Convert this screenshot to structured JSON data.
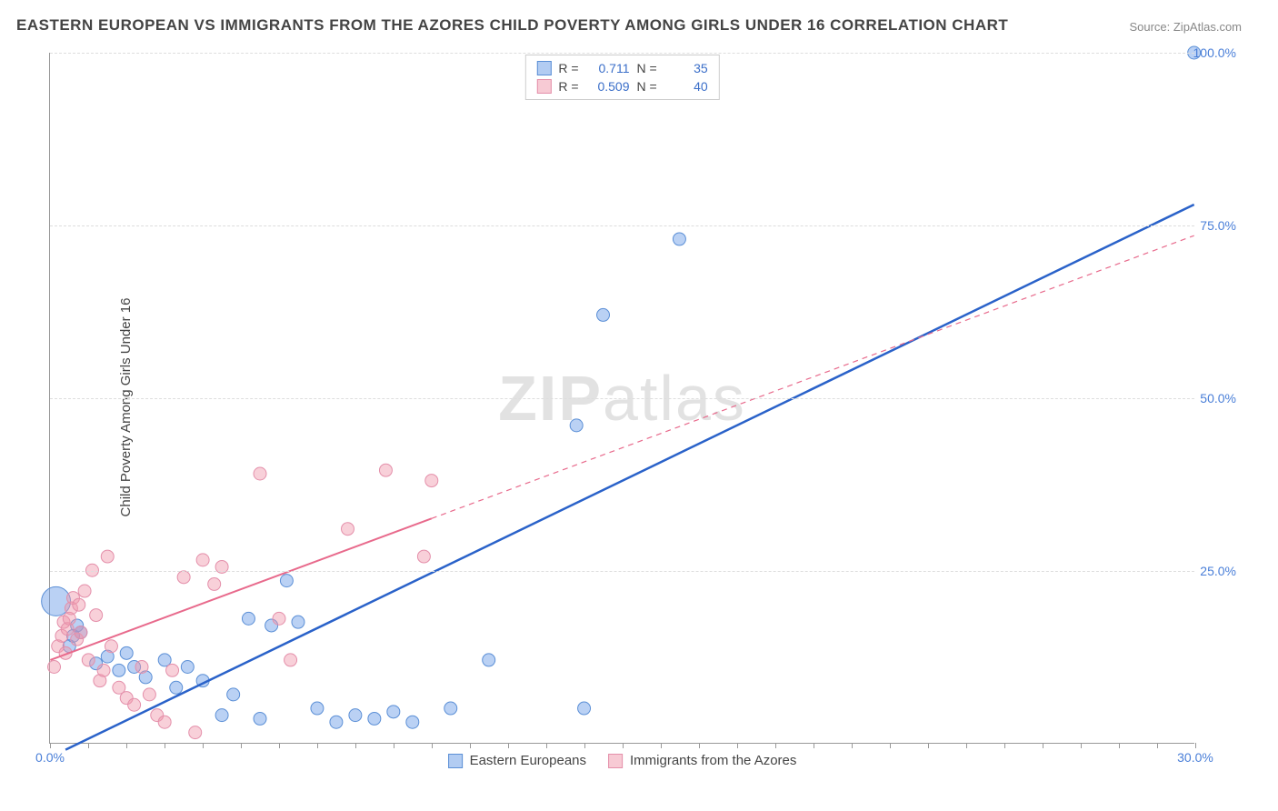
{
  "title": "EASTERN EUROPEAN VS IMMIGRANTS FROM THE AZORES CHILD POVERTY AMONG GIRLS UNDER 16 CORRELATION CHART",
  "source_label": "Source: ZipAtlas.com",
  "y_axis_label": "Child Poverty Among Girls Under 16",
  "watermark_a": "ZIP",
  "watermark_b": "atlas",
  "chart": {
    "type": "scatter",
    "background_color": "#ffffff",
    "grid_color": "#dddddd",
    "axis_color": "#999999",
    "xlim": [
      0,
      30
    ],
    "ylim": [
      0,
      100
    ],
    "x_ticks": [
      0,
      1,
      2,
      3,
      4,
      5,
      6,
      7,
      8,
      9,
      10,
      11,
      12,
      13,
      14,
      15,
      16,
      17,
      18,
      19,
      20,
      21,
      22,
      23,
      24,
      25,
      26,
      27,
      28,
      29,
      30
    ],
    "x_tick_labels": {
      "0": "0.0%",
      "30": "30.0%"
    },
    "y_ticks_lines": [
      25,
      50,
      75,
      100
    ],
    "y_tick_labels": {
      "25": "25.0%",
      "50": "50.0%",
      "75": "75.0%",
      "100": "100.0%"
    },
    "series": [
      {
        "name": "Eastern Europeans",
        "color_fill": "rgba(102,153,230,0.45)",
        "color_stroke": "#5b8fd6",
        "marker_radius": 7,
        "R": "0.711",
        "N": "35",
        "trend": {
          "x1": 0.4,
          "y1": -1.0,
          "x2_solid": 30.0,
          "y2_solid": 78.0,
          "dashed_from_x": null
        },
        "trend_color": "#2a62c9",
        "trend_width": 2.5,
        "points": [
          [
            0.15,
            20.5,
            16
          ],
          [
            0.5,
            14.0,
            7
          ],
          [
            0.6,
            15.5,
            7
          ],
          [
            0.7,
            17.0,
            7
          ],
          [
            0.8,
            16.0,
            7
          ],
          [
            1.2,
            11.5,
            7
          ],
          [
            1.5,
            12.5,
            7
          ],
          [
            1.8,
            10.5,
            7
          ],
          [
            2.0,
            13.0,
            7
          ],
          [
            2.2,
            11.0,
            7
          ],
          [
            2.5,
            9.5,
            7
          ],
          [
            3.0,
            12.0,
            7
          ],
          [
            3.3,
            8.0,
            7
          ],
          [
            3.6,
            11.0,
            7
          ],
          [
            4.0,
            9.0,
            7
          ],
          [
            4.5,
            4.0,
            7
          ],
          [
            4.8,
            7.0,
            7
          ],
          [
            5.2,
            18.0,
            7
          ],
          [
            5.5,
            3.5,
            7
          ],
          [
            5.8,
            17.0,
            7
          ],
          [
            6.2,
            23.5,
            7
          ],
          [
            6.5,
            17.5,
            7
          ],
          [
            7.0,
            5.0,
            7
          ],
          [
            7.5,
            3.0,
            7
          ],
          [
            8.0,
            4.0,
            7
          ],
          [
            8.5,
            3.5,
            7
          ],
          [
            9.0,
            4.5,
            7
          ],
          [
            9.5,
            3.0,
            7
          ],
          [
            10.5,
            5.0,
            7
          ],
          [
            11.5,
            12.0,
            7
          ],
          [
            13.8,
            46.0,
            7
          ],
          [
            14.0,
            5.0,
            7
          ],
          [
            14.5,
            62.0,
            7
          ],
          [
            16.5,
            73.0,
            7
          ],
          [
            30.0,
            100.0,
            7
          ]
        ]
      },
      {
        "name": "Immigrants from the Azores",
        "color_fill": "rgba(240,150,170,0.45)",
        "color_stroke": "#e48faa",
        "marker_radius": 7,
        "R": "0.509",
        "N": "40",
        "trend": {
          "x1": 0.0,
          "y1": 12.0,
          "x2_solid": 10.0,
          "y2_solid": 32.5,
          "x2_dash": 30.0,
          "y2_dash": 73.5
        },
        "trend_color": "#e86a8c",
        "trend_width": 2,
        "points": [
          [
            0.1,
            11.0,
            7
          ],
          [
            0.2,
            14.0,
            7
          ],
          [
            0.3,
            15.5,
            7
          ],
          [
            0.35,
            17.5,
            7
          ],
          [
            0.4,
            13.0,
            7
          ],
          [
            0.45,
            16.5,
            7
          ],
          [
            0.5,
            18.0,
            7
          ],
          [
            0.55,
            19.5,
            7
          ],
          [
            0.6,
            21.0,
            7
          ],
          [
            0.7,
            15.0,
            7
          ],
          [
            0.75,
            20.0,
            7
          ],
          [
            0.8,
            16.0,
            7
          ],
          [
            0.9,
            22.0,
            7
          ],
          [
            1.0,
            12.0,
            7
          ],
          [
            1.1,
            25.0,
            7
          ],
          [
            1.2,
            18.5,
            7
          ],
          [
            1.3,
            9.0,
            7
          ],
          [
            1.4,
            10.5,
            7
          ],
          [
            1.5,
            27.0,
            7
          ],
          [
            1.6,
            14.0,
            7
          ],
          [
            1.8,
            8.0,
            7
          ],
          [
            2.0,
            6.5,
            7
          ],
          [
            2.2,
            5.5,
            7
          ],
          [
            2.4,
            11.0,
            7
          ],
          [
            2.6,
            7.0,
            7
          ],
          [
            2.8,
            4.0,
            7
          ],
          [
            3.0,
            3.0,
            7
          ],
          [
            3.2,
            10.5,
            7
          ],
          [
            3.5,
            24.0,
            7
          ],
          [
            3.8,
            1.5,
            7
          ],
          [
            4.0,
            26.5,
            7
          ],
          [
            4.3,
            23.0,
            7
          ],
          [
            4.5,
            25.5,
            7
          ],
          [
            5.5,
            39.0,
            7
          ],
          [
            6.0,
            18.0,
            7
          ],
          [
            6.3,
            12.0,
            7
          ],
          [
            7.8,
            31.0,
            7
          ],
          [
            8.8,
            39.5,
            7
          ],
          [
            9.8,
            27.0,
            7
          ],
          [
            10.0,
            38.0,
            7
          ]
        ]
      }
    ]
  },
  "stats_box": {
    "label_R": "R =",
    "label_N": "N ="
  },
  "legend": {
    "series1": "Eastern Europeans",
    "series2": "Immigrants from the Azores"
  }
}
